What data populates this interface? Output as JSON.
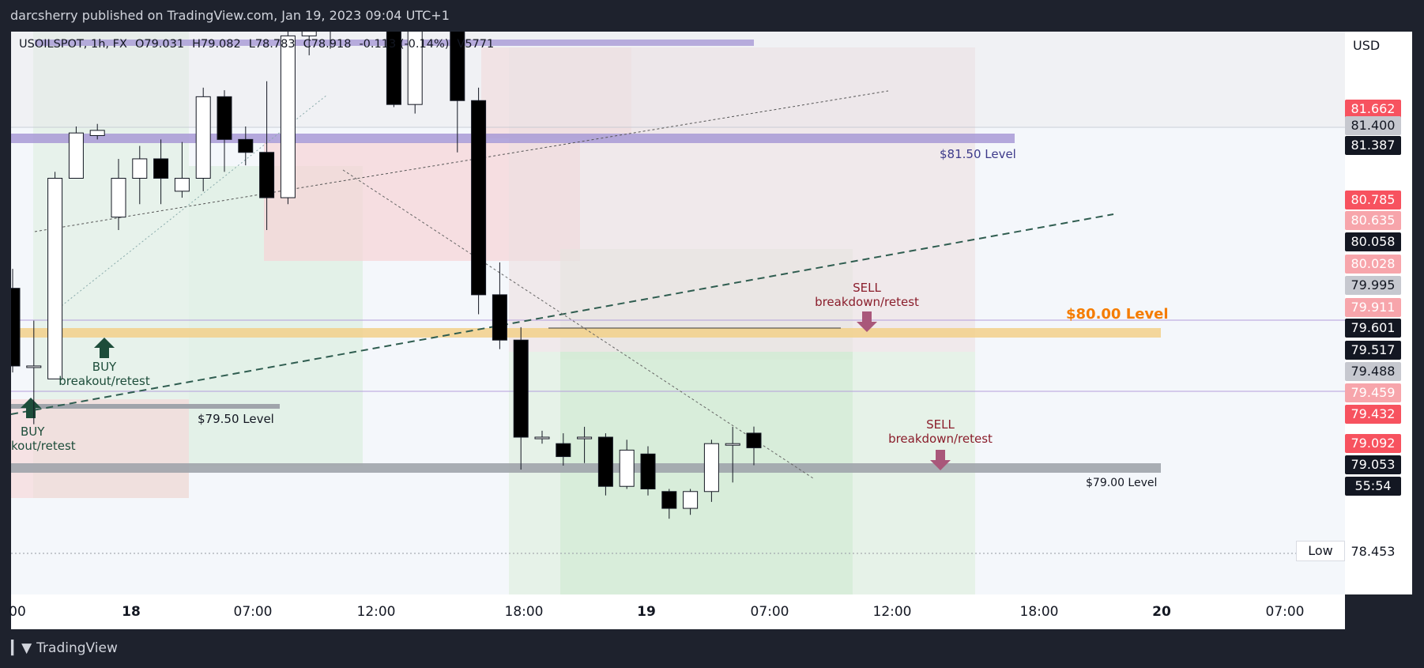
{
  "header": {
    "attribution": "darcsherry published on TradingView.com, Jan 19, 2023 09:04 UTC+1"
  },
  "legend": {
    "symbol": "USOILSPOT, 1h, FX",
    "open": "O79.031",
    "high": "H79.082",
    "low": "L78.783",
    "close": "C78.918",
    "change": "-0.113 (-0.14%)",
    "volume": "V5771"
  },
  "currency": "USD",
  "colors": {
    "up": "#ffffff",
    "down": "#000000",
    "candle_outline": "#131722",
    "label_red": "#f7525f",
    "label_pink": "#f7a5ab",
    "label_black": "#131722",
    "label_gray": "#c6c8cf",
    "orange": "#f57c00",
    "maroon": "#8a1d2b"
  },
  "chart_data": {
    "type": "candlestick",
    "title": "USOILSPOT, 1h, FX",
    "x_tick_labels": [
      "00",
      "18",
      "07:00",
      "12:00",
      "18:00",
      "19",
      "07:00",
      "12:00",
      "18:00",
      "20",
      "07:00"
    ],
    "ylim": [
      78.2,
      82.2
    ],
    "y_axis": "right",
    "candles": [
      {
        "o": 80.15,
        "h": 80.3,
        "l": 79.5,
        "c": 79.55
      },
      {
        "o": 79.55,
        "h": 79.9,
        "l": 79.1,
        "c": 79.55
      },
      {
        "o": 79.45,
        "h": 81.05,
        "l": 79.45,
        "c": 81.0
      },
      {
        "o": 81.0,
        "h": 81.4,
        "l": 81.0,
        "c": 81.35
      },
      {
        "o": 81.33,
        "h": 81.42,
        "l": 81.3,
        "c": 81.37
      },
      {
        "o": 80.7,
        "h": 81.15,
        "l": 80.6,
        "c": 81.0
      },
      {
        "o": 81.0,
        "h": 81.25,
        "l": 80.8,
        "c": 81.15
      },
      {
        "o": 81.15,
        "h": 81.3,
        "l": 80.8,
        "c": 81.0
      },
      {
        "o": 80.9,
        "h": 81.28,
        "l": 80.85,
        "c": 81.0
      },
      {
        "o": 81.0,
        "h": 81.7,
        "l": 80.9,
        "c": 81.63
      },
      {
        "o": 81.63,
        "h": 81.68,
        "l": 81.05,
        "c": 81.3
      },
      {
        "o": 81.3,
        "h": 81.4,
        "l": 81.1,
        "c": 81.2
      },
      {
        "o": 81.2,
        "h": 81.75,
        "l": 80.6,
        "c": 80.85
      },
      {
        "o": 80.85,
        "h": 82.35,
        "l": 80.8,
        "c": 82.1
      },
      {
        "o": 82.1,
        "h": 82.25,
        "l": 81.95,
        "c": 82.2
      },
      {
        "o": 82.2,
        "h": 82.45,
        "l": 82.0,
        "c": 82.45
      },
      {
        "o": 82.35,
        "h": 82.4,
        "l": 82.2,
        "c": 82.35
      },
      {
        "o": 82.3,
        "h": 82.4,
        "l": 82.15,
        "c": 82.3
      },
      {
        "o": 82.4,
        "h": 82.5,
        "l": 81.55,
        "c": 81.57
      },
      {
        "o": 81.57,
        "h": 82.55,
        "l": 81.5,
        "c": 82.55
      },
      {
        "o": 82.5,
        "h": 82.55,
        "l": 82.3,
        "c": 82.35
      },
      {
        "o": 82.2,
        "h": 82.4,
        "l": 81.2,
        "c": 81.6
      },
      {
        "o": 81.6,
        "h": 81.7,
        "l": 79.95,
        "c": 80.1
      },
      {
        "o": 80.1,
        "h": 80.35,
        "l": 79.68,
        "c": 79.75
      },
      {
        "o": 79.75,
        "h": 79.85,
        "l": 78.75,
        "c": 79.0
      },
      {
        "o": 79.0,
        "h": 79.05,
        "l": 78.95,
        "c": 79.0
      },
      {
        "o": 78.95,
        "h": 79.03,
        "l": 78.78,
        "c": 78.85
      },
      {
        "o": 79.0,
        "h": 79.08,
        "l": 78.8,
        "c": 79.0
      },
      {
        "o": 79.0,
        "h": 79.03,
        "l": 78.55,
        "c": 78.62
      },
      {
        "o": 78.62,
        "h": 78.98,
        "l": 78.6,
        "c": 78.9
      },
      {
        "o": 78.87,
        "h": 78.93,
        "l": 78.55,
        "c": 78.6
      },
      {
        "o": 78.58,
        "h": 78.6,
        "l": 78.37,
        "c": 78.45
      },
      {
        "o": 78.45,
        "h": 78.6,
        "l": 78.4,
        "c": 78.58
      },
      {
        "o": 78.58,
        "h": 78.98,
        "l": 78.5,
        "c": 78.95
      },
      {
        "o": 78.95,
        "h": 79.08,
        "l": 78.65,
        "c": 78.95
      },
      {
        "o": 79.031,
        "h": 79.082,
        "l": 78.783,
        "c": 78.918
      }
    ],
    "levels": [
      {
        "label": "$81.50 Level",
        "value": 81.47
      },
      {
        "label": "$80.00 Level",
        "value": 80.0
      },
      {
        "label": "$79.50 Level",
        "value": 79.39
      },
      {
        "label": "$79.00 Level",
        "value": 79.0
      }
    ],
    "price_labels": [
      {
        "value": 81.662,
        "text": "81.662",
        "style": "red"
      },
      {
        "value": 81.4,
        "text": "81.400",
        "style": "gray"
      },
      {
        "value": 81.387,
        "text": "81.387",
        "style": "black"
      },
      {
        "value": 80.785,
        "text": "80.785",
        "style": "red"
      },
      {
        "value": 80.635,
        "text": "80.635",
        "style": "pink"
      },
      {
        "value": 80.058,
        "text": "80.058",
        "style": "black"
      },
      {
        "value": 80.028,
        "text": "80.028",
        "style": "pink"
      },
      {
        "value": 79.995,
        "text": "79.995",
        "style": "gray"
      },
      {
        "value": 79.911,
        "text": "79.911",
        "style": "pink"
      },
      {
        "value": 79.601,
        "text": "79.601",
        "style": "black"
      },
      {
        "value": 79.517,
        "text": "79.517",
        "style": "black"
      },
      {
        "value": 79.488,
        "text": "79.488",
        "style": "gray"
      },
      {
        "value": 79.459,
        "text": "79.459",
        "style": "pink"
      },
      {
        "value": 79.432,
        "text": "79.432",
        "style": "red"
      },
      {
        "value": 79.092,
        "text": "79.092",
        "style": "red"
      },
      {
        "value": 79.053,
        "text": "79.053",
        "style": "black"
      },
      {
        "value": null,
        "text": "55:54",
        "style": "black"
      },
      {
        "value": 78.453,
        "text": "78.453",
        "style": "white"
      }
    ],
    "annotations": [
      {
        "text": "BUY",
        "sub": "breakout/retest"
      },
      {
        "text": "BUY",
        "sub": "kout/retest"
      },
      {
        "text": "SELL",
        "sub": "breakdown/retest"
      },
      {
        "text": "SELL",
        "sub": "breakdown/retest"
      }
    ],
    "low_label": "Low"
  },
  "footer": {
    "brand": "TradingView"
  }
}
